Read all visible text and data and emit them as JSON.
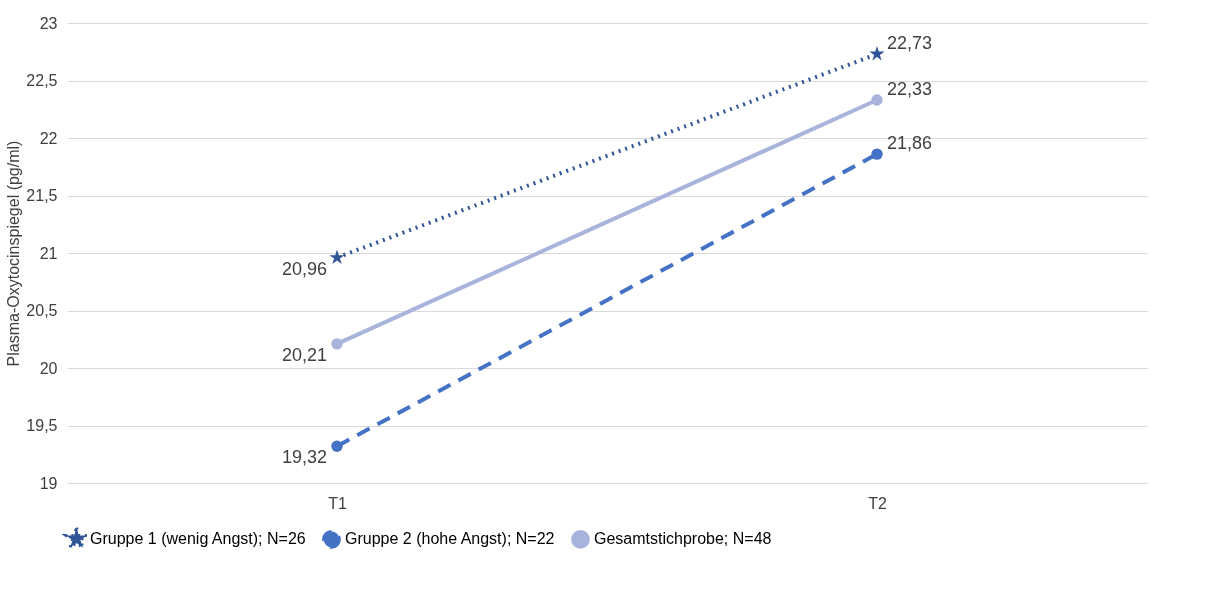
{
  "chart_data": {
    "type": "line",
    "ylabel": "Plasma-Oxytocinspiegel (pg/ml)",
    "categories": [
      "T1",
      "T2"
    ],
    "series": [
      {
        "name": "Gruppe 1 (wenig Angst); N=26",
        "color": "#2f5597",
        "values": [
          20.96,
          22.73
        ],
        "value_labels": [
          "20,96",
          "22,73"
        ],
        "line_style": "dotted",
        "marker": "star"
      },
      {
        "name": "Gruppe 2 (hohe Angst); N=22",
        "color": "#4472c4",
        "values": [
          19.32,
          21.86
        ],
        "value_labels": [
          "19,32",
          "21,86"
        ],
        "line_style": "dashed",
        "marker": "circle"
      },
      {
        "name": "Gesamtstichprobe; N=48",
        "color": "#a9b4dc",
        "values": [
          20.21,
          22.33
        ],
        "value_labels": [
          "20,21",
          "22,33"
        ],
        "line_style": "solid",
        "marker": "circle"
      }
    ],
    "ylim": [
      19,
      23
    ],
    "yticks": [
      19,
      {
        "value": 19.5,
        "label": "19,5"
      },
      20,
      {
        "value": 20.5,
        "label": "20,5"
      },
      21,
      {
        "value": 21.5,
        "label": "21,5"
      },
      22,
      {
        "value": 22.5,
        "label": "22,5"
      },
      23
    ],
    "grid": "y",
    "legend": "bottom"
  }
}
